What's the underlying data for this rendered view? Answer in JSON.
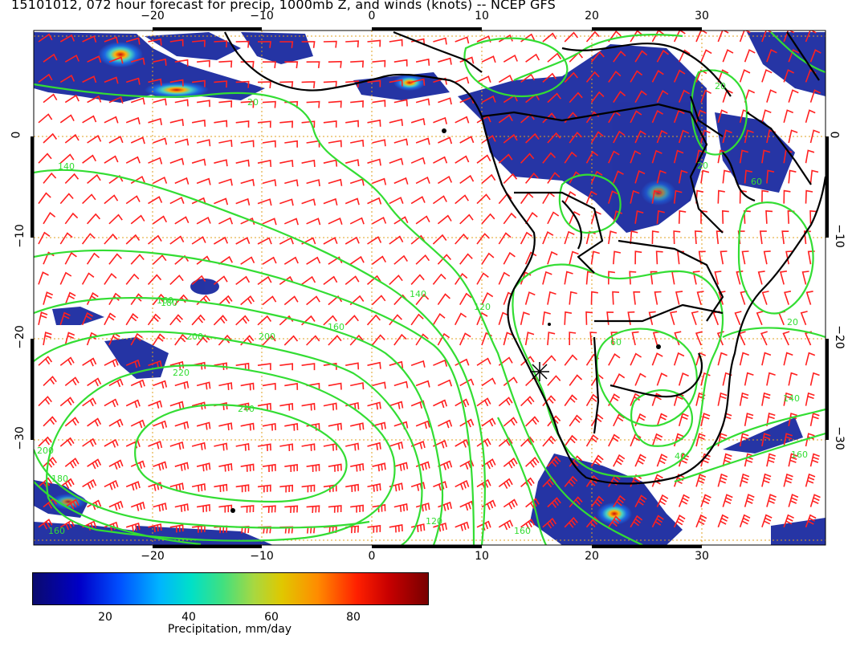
{
  "title": "15101012, 072 hour forecast for precip, 1000mb Z, and winds (knots) -- NCEP GFS",
  "axes": {
    "lon_ticks": [
      "−20",
      "−10",
      "0",
      "10",
      "20",
      "30"
    ],
    "lon_values": [
      -20,
      -10,
      0,
      10,
      20,
      30
    ],
    "lat_ticks": [
      "0",
      "−10",
      "−20",
      "−30"
    ],
    "lat_values": [
      0,
      -10,
      -20,
      -30
    ],
    "lon_range": [
      -30,
      41
    ],
    "lat_range": [
      -40,
      10
    ]
  },
  "contour_labels": [
    "20",
    "140",
    "160",
    "180",
    "200",
    "220",
    "240",
    "200",
    "160",
    "140",
    "120",
    "60",
    "40",
    "20",
    "160",
    "140",
    "200",
    "180",
    "160",
    "120",
    "160",
    "20",
    "60",
    "20"
  ],
  "colorbar": {
    "ticks": [
      "20",
      "40",
      "60",
      "80"
    ],
    "tick_values": [
      20,
      40,
      60,
      80
    ],
    "range": [
      0,
      100
    ],
    "label": "Precipitation, mm/day"
  },
  "colors": {
    "contour": "#33dd33",
    "barb": "#ff2020",
    "coast": "#000000",
    "grid": "#e0a020",
    "precip_low": "#1a2aa0",
    "precip_high": "#c80000"
  },
  "icons": {
    "marker": "asterisk-station-icon"
  }
}
